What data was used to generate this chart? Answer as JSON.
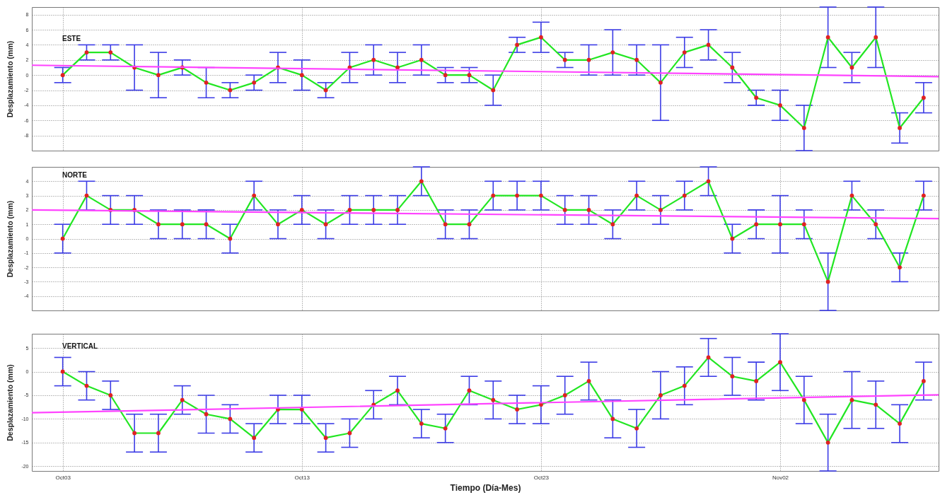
{
  "chart_data": [
    {
      "type": "line",
      "ylabel": "Desplazamiento (mm)",
      "annotations": [
        "ESTE"
      ],
      "x": [
        "--10-03",
        "--10-04",
        "--10-05",
        "--10-06",
        "--10-07",
        "--10-08",
        "--10-09",
        "--10-10",
        "--10-11",
        "--10-12",
        "--10-13",
        "--10-14",
        "--10-15",
        "--10-16",
        "--10-17",
        "--10-18",
        "--10-19",
        "--10-20",
        "--10-21",
        "--10-22",
        "--10-23",
        "--10-24",
        "--10-25",
        "--10-26",
        "--10-27",
        "--10-28",
        "--10-29",
        "--10-30",
        "--10-31",
        "--11-01",
        "--11-02",
        "--11-03",
        "--11-04",
        "--11-05",
        "--11-06",
        "--11-07",
        "--11-08"
      ],
      "xlim": [
        "--10-01T17:00",
        "--11-08T15:00"
      ],
      "xticks": [
        {
          "value": "--10-03",
          "label": null
        },
        {
          "value": "--10-13",
          "label": null
        },
        {
          "value": "--10-23",
          "label": null
        },
        {
          "value": "--11-02",
          "label": null
        }
      ],
      "ylim": [
        -10,
        9
      ],
      "yticks": [
        -8,
        -6,
        -4,
        -2,
        0,
        2,
        4,
        6,
        8
      ],
      "grid": true,
      "tick_labels": "y",
      "series": [
        {
          "color": "#22e622",
          "values": [
            0,
            3,
            3,
            1,
            0,
            1,
            -1,
            -2,
            -1,
            1,
            0,
            -2,
            1,
            2,
            1,
            2,
            0,
            0,
            -2,
            4,
            5,
            2,
            2,
            3,
            2,
            -1,
            3,
            4,
            1,
            -3,
            -4,
            -7,
            5,
            1,
            5,
            -7,
            -3
          ],
          "errors": [
            1,
            1,
            1,
            3,
            3,
            1,
            2,
            1,
            1,
            2,
            2,
            1,
            2,
            2,
            2,
            2,
            1,
            1,
            2,
            1,
            2,
            1,
            2,
            3,
            2,
            5,
            2,
            2,
            2,
            1,
            2,
            3,
            4,
            2,
            4,
            2,
            2
          ]
        },
        {
          "type": "scatter",
          "marker": "circle",
          "color": "#e02222",
          "values": [
            0,
            3,
            3,
            1,
            0,
            1,
            -1,
            -2,
            -1,
            1,
            0,
            -2,
            1,
            2,
            1,
            2,
            0,
            0,
            -2,
            4,
            5,
            2,
            2,
            3,
            2,
            -1,
            3,
            4,
            1,
            -3,
            -4,
            -7,
            5,
            1,
            5,
            -7,
            -3
          ]
        },
        {
          "color": "#ff44ff",
          "x": [
            "--10-01T17:00",
            "--11-08T15:00"
          ],
          "values": [
            1.3,
            -0.2
          ]
        }
      ]
    },
    {
      "type": "line",
      "ylabel": "Desplazamiento (mm)",
      "annotations": [
        "NORTE"
      ],
      "x": [
        "--10-03",
        "--10-04",
        "--10-05",
        "--10-06",
        "--10-07",
        "--10-08",
        "--10-09",
        "--10-10",
        "--10-11",
        "--10-12",
        "--10-13",
        "--10-14",
        "--10-15",
        "--10-16",
        "--10-17",
        "--10-18",
        "--10-19",
        "--10-20",
        "--10-21",
        "--10-22",
        "--10-23",
        "--10-24",
        "--10-25",
        "--10-26",
        "--10-27",
        "--10-28",
        "--10-29",
        "--10-30",
        "--10-31",
        "--11-01",
        "--11-02",
        "--11-03",
        "--11-04",
        "--11-05",
        "--11-06",
        "--11-07",
        "--11-08"
      ],
      "xlim": [
        "--10-01T17:00",
        "--11-08T15:00"
      ],
      "xticks": [
        {
          "value": "--10-03",
          "label": null
        },
        {
          "value": "--10-13",
          "label": null
        },
        {
          "value": "--10-23",
          "label": null
        },
        {
          "value": "--11-02",
          "label": null
        }
      ],
      "ylim": [
        -5,
        5
      ],
      "yticks": [
        -4,
        -3,
        -2,
        -1,
        0,
        1,
        2,
        3,
        4
      ],
      "grid": true,
      "tick_labels": "y",
      "series": [
        {
          "color": "#22e622",
          "values": [
            0,
            3,
            2,
            2,
            1,
            1,
            1,
            0,
            3,
            1,
            2,
            1,
            2,
            2,
            2,
            4,
            1,
            1,
            3,
            3,
            3,
            2,
            2,
            1,
            3,
            2,
            3,
            4,
            0,
            1,
            1,
            1,
            -3,
            3,
            1,
            -2,
            3
          ],
          "errors": [
            1,
            1,
            1,
            1,
            1,
            1,
            1,
            1,
            1,
            1,
            1,
            1,
            1,
            1,
            1,
            1,
            1,
            1,
            1,
            1,
            1,
            1,
            1,
            1,
            1,
            1,
            1,
            1,
            1,
            1,
            2,
            1,
            2,
            1,
            1,
            1,
            1
          ]
        },
        {
          "type": "scatter",
          "marker": "circle",
          "color": "#e02222",
          "values": [
            0,
            3,
            2,
            2,
            1,
            1,
            1,
            0,
            3,
            1,
            2,
            1,
            2,
            2,
            2,
            4,
            1,
            1,
            3,
            3,
            3,
            2,
            2,
            1,
            3,
            2,
            3,
            4,
            0,
            1,
            1,
            1,
            -3,
            3,
            1,
            -2,
            3
          ]
        },
        {
          "color": "#ff44ff",
          "x": [
            "--10-01T17:00",
            "--11-08T15:00"
          ],
          "values": [
            2,
            1.4
          ]
        }
      ]
    },
    {
      "type": "line",
      "xlabel": "Tiempo (Día-Mes)",
      "ylabel": "Desplazamiento (mm)",
      "annotations": [
        "VERTICAL"
      ],
      "x": [
        "--10-03",
        "--10-04",
        "--10-05",
        "--10-06",
        "--10-07",
        "--10-08",
        "--10-09",
        "--10-10",
        "--10-11",
        "--10-12",
        "--10-13",
        "--10-14",
        "--10-15",
        "--10-16",
        "--10-17",
        "--10-18",
        "--10-19",
        "--10-20",
        "--10-21",
        "--10-22",
        "--10-23",
        "--10-24",
        "--10-25",
        "--10-26",
        "--10-27",
        "--10-28",
        "--10-29",
        "--10-30",
        "--10-31",
        "--11-01",
        "--11-02",
        "--11-03",
        "--11-04",
        "--11-05",
        "--11-06",
        "--11-07",
        "--11-08"
      ],
      "xlim": [
        "--10-01T17:00",
        "--11-08T15:00"
      ],
      "xticks": [
        {
          "value": "--10-03",
          "label": "Oct03"
        },
        {
          "value": "--10-13",
          "label": "Oct13"
        },
        {
          "value": "--10-23",
          "label": "Oct23"
        },
        {
          "value": "--11-02",
          "label": "Nov02"
        }
      ],
      "ylim": [
        -21,
        8
      ],
      "yticks": [
        -20,
        -15,
        -10,
        -5,
        0,
        5
      ],
      "grid": true,
      "series": [
        {
          "color": "#22e622",
          "values": [
            0,
            -3,
            -5,
            -13,
            -13,
            -6,
            -9,
            -10,
            -14,
            -8,
            -8,
            -14,
            -13,
            -7,
            -4,
            -11,
            -12,
            -4,
            -6,
            -8,
            -7,
            -5,
            -2,
            -10,
            -12,
            -5,
            -3,
            3,
            -1,
            -2,
            2,
            -6,
            -15,
            -6,
            -7,
            -11,
            -2
          ],
          "errors": [
            3,
            3,
            3,
            4,
            4,
            3,
            4,
            3,
            3,
            3,
            3,
            3,
            3,
            3,
            3,
            3,
            3,
            3,
            4,
            3,
            4,
            4,
            4,
            4,
            4,
            5,
            4,
            4,
            4,
            4,
            6,
            5,
            6,
            6,
            5,
            4,
            4
          ]
        },
        {
          "type": "scatter",
          "marker": "circle",
          "color": "#e02222",
          "values": [
            0,
            -3,
            -5,
            -13,
            -13,
            -6,
            -9,
            -10,
            -14,
            -8,
            -8,
            -14,
            -13,
            -7,
            -4,
            -11,
            -12,
            -4,
            -6,
            -8,
            -7,
            -5,
            -2,
            -10,
            -12,
            -5,
            -3,
            3,
            -1,
            -2,
            2,
            -6,
            -15,
            -6,
            -7,
            -11,
            -2
          ]
        },
        {
          "color": "#ff44ff",
          "x": [
            "--10-01T17:00",
            "--11-08T15:00"
          ],
          "values": [
            -8.7,
            -4.9
          ]
        }
      ]
    }
  ]
}
